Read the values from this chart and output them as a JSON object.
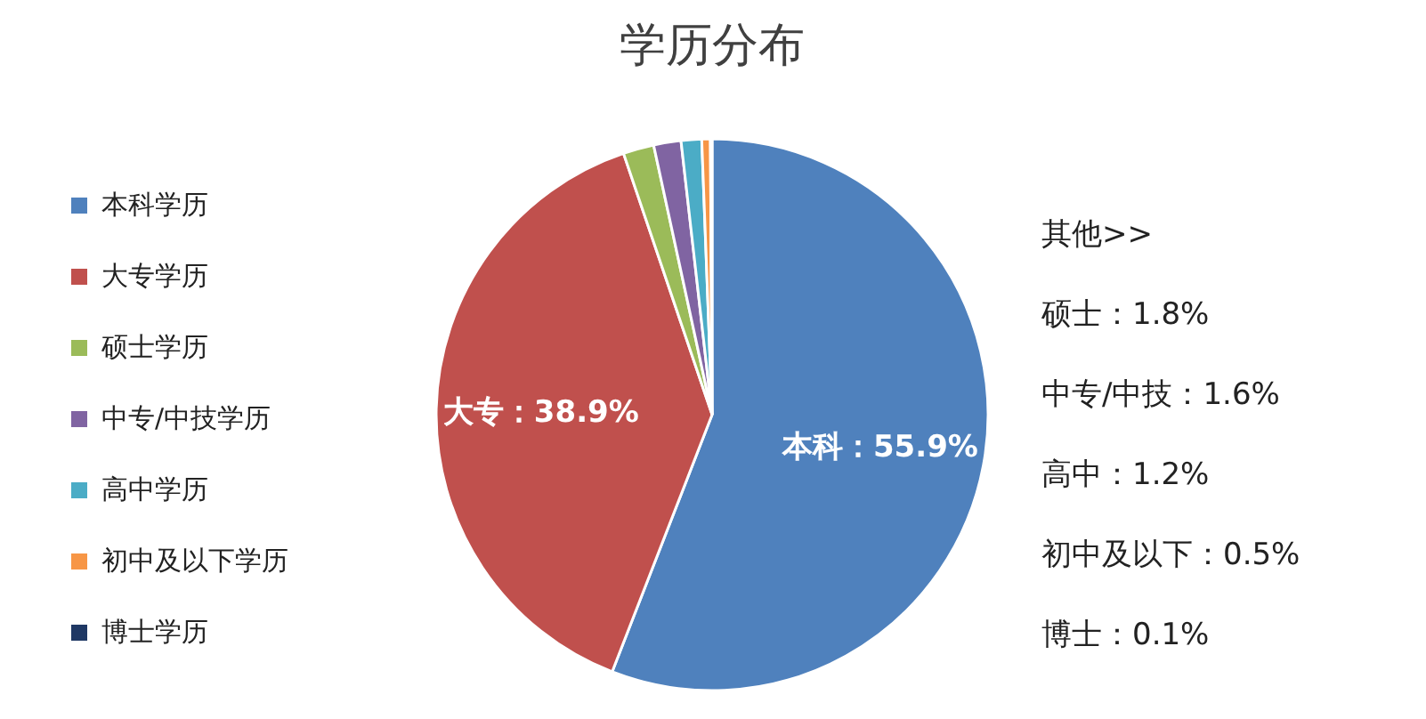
{
  "chart_data": {
    "type": "pie",
    "title": "学历分布",
    "categories": [
      "本科学历",
      "大专学历",
      "硕士学历",
      "中专/中技学历",
      "高中学历",
      "初中及以下学历",
      "博士学历"
    ],
    "values": [
      55.9,
      38.9,
      1.8,
      1.6,
      1.2,
      0.5,
      0.1
    ],
    "colors": [
      "#4f81bd",
      "#c0504d",
      "#9bbb59",
      "#8064a2",
      "#4bacc6",
      "#f79646",
      "#1f3864"
    ],
    "value_labels": [
      "本科：55.9%",
      "大专：38.9%",
      null,
      null,
      null,
      null,
      null
    ],
    "annotations": [
      "其他>>",
      "硕士：1.8%",
      "中专/中技：1.6%",
      "高中：1.2%",
      "初中及以下：0.5%",
      "博士：0.1%"
    ],
    "legend": "left"
  }
}
